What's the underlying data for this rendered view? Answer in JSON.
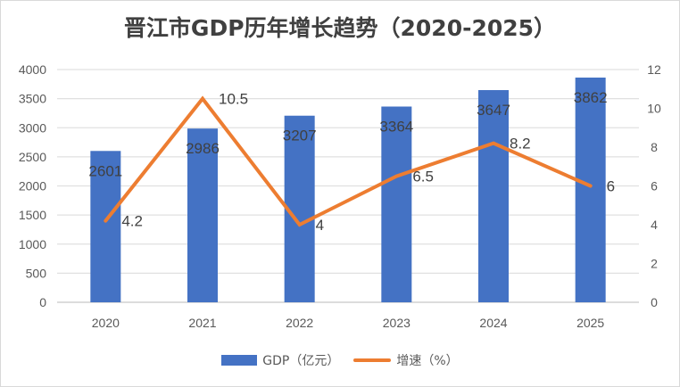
{
  "chart_data": {
    "type": "bar+line",
    "title": "晋江市GDP历年增长趋势（2020-2025）",
    "categories": [
      "2020",
      "2021",
      "2022",
      "2023",
      "2024",
      "2025"
    ],
    "series": [
      {
        "name": "GDP（亿元）",
        "type": "bar",
        "axis": "left",
        "color": "#4472c4",
        "values": [
          2601,
          2986,
          3207,
          3364,
          3647,
          3862
        ],
        "labels": [
          "2601",
          "2986",
          "3207",
          "3364",
          "3647",
          "3862"
        ]
      },
      {
        "name": "增速（%）",
        "type": "line",
        "axis": "right",
        "color": "#ed7d31",
        "values": [
          4.2,
          10.5,
          4,
          6.5,
          8.2,
          6
        ],
        "labels": [
          "4.2",
          "10.5",
          "4",
          "6.5",
          "8.2",
          "6"
        ]
      }
    ],
    "y_left": {
      "range": [
        0,
        4000
      ],
      "ticks": [
        "0",
        "500",
        "1000",
        "1500",
        "2000",
        "2500",
        "3000",
        "3500",
        "4000"
      ]
    },
    "y_right": {
      "range": [
        0,
        12
      ],
      "ticks": [
        "0",
        "2",
        "4",
        "6",
        "8",
        "10",
        "12"
      ]
    },
    "xlabel": "",
    "ylabel": "",
    "grid": true,
    "legend_position": "bottom"
  },
  "legend": {
    "gdp_label": "GDP（亿元）",
    "growth_label": "增速（%）"
  }
}
